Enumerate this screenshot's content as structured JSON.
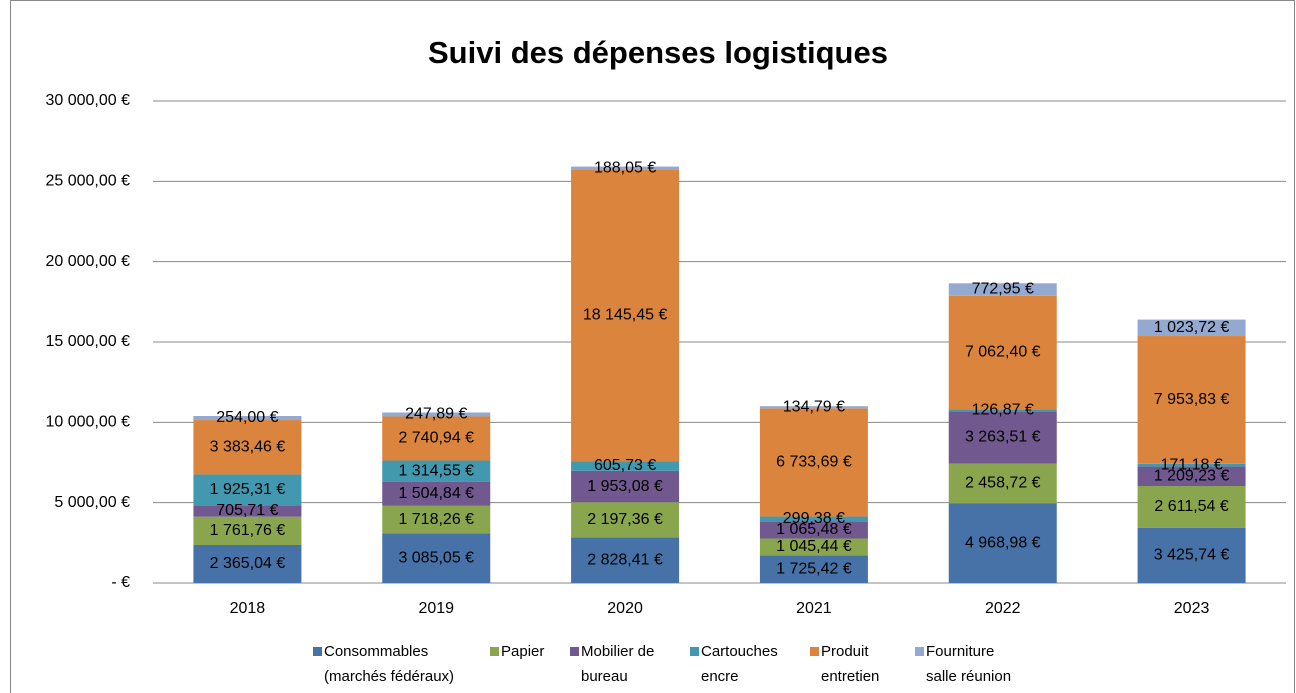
{
  "chart_data": {
    "type": "stacked_bar",
    "title": "Suivi des dépenses logistiques",
    "categories": [
      "2018",
      "2019",
      "2020",
      "2021",
      "2022",
      "2023"
    ],
    "series": [
      {
        "name": "Consommables (marchés fédéraux)",
        "color": "#4672a8",
        "values": [
          2365.04,
          3085.05,
          2828.41,
          1725.42,
          4968.98,
          3425.74
        ],
        "value_labels": [
          "2 365,04 €",
          "3 085,05 €",
          "2 828,41 €",
          "1 725,42 €",
          "4 968,98 €",
          "3 425,74 €"
        ]
      },
      {
        "name": "Papier",
        "color": "#89a54e",
        "values": [
          1761.76,
          1718.26,
          2197.36,
          1045.44,
          2458.72,
          2611.54
        ],
        "value_labels": [
          "1 761,76 €",
          "1 718,26 €",
          "2 197,36 €",
          "1 045,44 €",
          "2 458,72 €",
          "2 611,54 €"
        ]
      },
      {
        "name": "Mobilier de bureau",
        "color": "#71588f",
        "values": [
          705.71,
          1504.84,
          1953.08,
          1065.48,
          3263.51,
          1209.23
        ],
        "value_labels": [
          "705,71 €",
          "1 504,84 €",
          "1 953,08 €",
          "1 065,48 €",
          "3 263,51 €",
          "1 209,23 €"
        ]
      },
      {
        "name": "Cartouches encre",
        "color": "#4198af",
        "values": [
          1925.31,
          1314.55,
          605.73,
          299.38,
          126.87,
          171.18
        ],
        "value_labels": [
          "1 925,31 €",
          "1 314,55 €",
          "605,73 €",
          "299,38 €",
          "126,87 €",
          "171,18 €"
        ]
      },
      {
        "name": "Produit entretien",
        "color": "#db843d",
        "values": [
          3383.46,
          2740.94,
          18145.45,
          6733.69,
          7062.4,
          7953.83
        ],
        "value_labels": [
          "3 383,46 €",
          "2 740,94 €",
          "18 145,45 €",
          "6 733,69 €",
          "7 062,40 €",
          "7 953,83 €"
        ]
      },
      {
        "name": "Fourniture salle réunion",
        "color": "#93a9cf",
        "values": [
          254.0,
          247.89,
          188.05,
          134.79,
          772.95,
          1023.72
        ],
        "value_labels": [
          "254,00 €",
          "247,89 €",
          "188,05 €",
          "134,79 €",
          "772,95 €",
          "1 023,72 €"
        ]
      }
    ],
    "ylim": [
      0,
      30000
    ],
    "yticks": [
      {
        "value": 0,
        "label": "-   €"
      },
      {
        "value": 5000,
        "label": "5 000,00 €"
      },
      {
        "value": 10000,
        "label": "10 000,00 €"
      },
      {
        "value": 15000,
        "label": "15 000,00 €"
      },
      {
        "value": 20000,
        "label": "20 000,00 €"
      },
      {
        "value": 25000,
        "label": "25 000,00 €"
      },
      {
        "value": 30000,
        "label": "30 000,00 €"
      }
    ],
    "grid": true,
    "legend": "bottom"
  }
}
